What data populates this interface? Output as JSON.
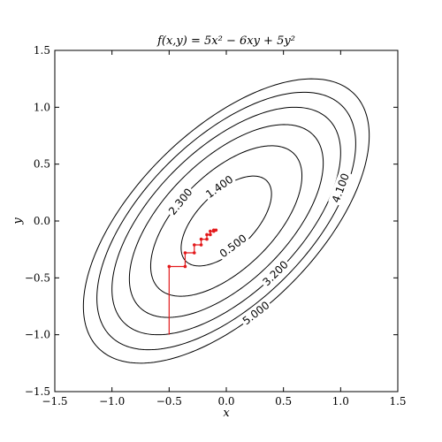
{
  "chart_data": {
    "type": "contour",
    "title": "f(x,y) = 5x² − 6xy + 5y²",
    "xlabel": "x",
    "ylabel": "y",
    "xlim": [
      -1.5,
      1.5
    ],
    "ylim": [
      -1.5,
      1.5
    ],
    "xticks": [
      -1.5,
      -1.0,
      -0.5,
      0.0,
      0.5,
      1.0,
      1.5
    ],
    "yticks": [
      -1.5,
      -1.0,
      -0.5,
      0.0,
      0.5,
      1.0,
      1.5
    ],
    "xtick_labels": [
      "−1.5",
      "−1.0",
      "−0.5",
      "0.0",
      "0.5",
      "1.0",
      "1.5"
    ],
    "ytick_labels": [
      "−1.5",
      "−1.0",
      "−0.5",
      "0.0",
      "0.5",
      "1.0",
      "1.5"
    ],
    "function": {
      "a": 5,
      "b": -6,
      "c": 5
    },
    "contour_levels": [
      0.5,
      1.4,
      2.3,
      3.2,
      4.1,
      5.0
    ],
    "contour_labels": [
      {
        "text": "0.500",
        "level": 0.5,
        "x": 0.06,
        "y": -0.22
      },
      {
        "text": "1.400",
        "level": 1.4,
        "x": -0.06,
        "y": 0.3
      },
      {
        "text": "2.300",
        "level": 2.3,
        "x": -0.4,
        "y": 0.17
      },
      {
        "text": "3.200",
        "level": 3.2,
        "x": 0.43,
        "y": -0.46
      },
      {
        "text": "4.100",
        "level": 4.1,
        "x": 1.0,
        "y": 0.29
      },
      {
        "text": "5.000",
        "level": 5.0,
        "x": 0.26,
        "y": -0.81
      }
    ],
    "path": [
      [
        -0.5,
        -1.0
      ],
      [
        -0.5,
        -0.4
      ],
      [
        -0.36,
        -0.4
      ],
      [
        -0.36,
        -0.28
      ],
      [
        -0.28,
        -0.28
      ],
      [
        -0.28,
        -0.21
      ],
      [
        -0.22,
        -0.21
      ],
      [
        -0.22,
        -0.16
      ],
      [
        -0.17,
        -0.16
      ],
      [
        -0.17,
        -0.12
      ],
      [
        -0.14,
        -0.12
      ],
      [
        -0.14,
        -0.09
      ],
      [
        -0.11,
        -0.09
      ],
      [
        -0.11,
        -0.08
      ],
      [
        -0.09,
        -0.08
      ]
    ],
    "colors": {
      "contour": "#000000",
      "path": "#e31a1c"
    }
  }
}
